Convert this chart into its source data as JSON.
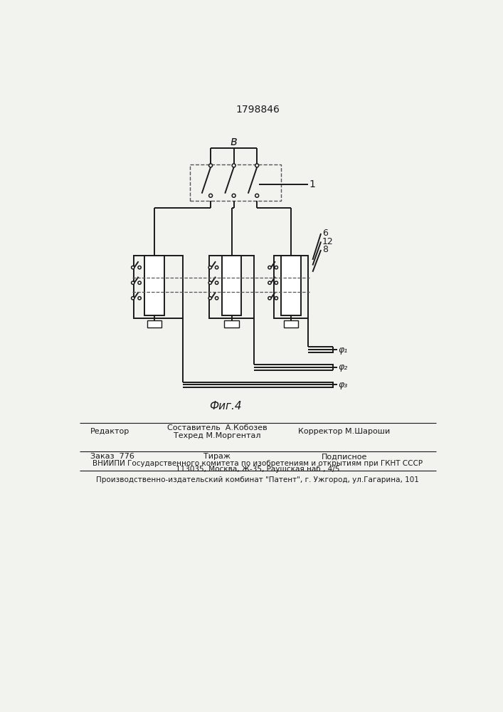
{
  "patent_number": "1798846",
  "fig_label": "Фиг.4",
  "label_B": "в",
  "label_1": "1",
  "label_6": "6",
  "label_12": "12",
  "label_8": "8",
  "label_phi1": "φ₁",
  "label_phi2": "φ₂",
  "label_phi3": "φ₃",
  "footer_editor": "Редактор",
  "footer_comp": "Составитель  А.Кобозев",
  "footer_tech": "Техред М.Моргентал",
  "footer_corr_label": "Корректор",
  "footer_corr": " М.Шароши",
  "footer_order": "Заказ  776",
  "footer_tirazh": "Тираж",
  "footer_podp": "Подписное",
  "footer_vniip1": "ВНИИПИ Государственного комитета по изобретениям и открытиям при ГКНТ СССР",
  "footer_vniip2": "113035, Москва, Ж-35, Раушская наб., 4/5",
  "footer_prod": "Производственно-издательский комбинат \"Патент\", г. Ужгород, ул.Гагарина, 101",
  "bg_color": "#f2f2ee"
}
